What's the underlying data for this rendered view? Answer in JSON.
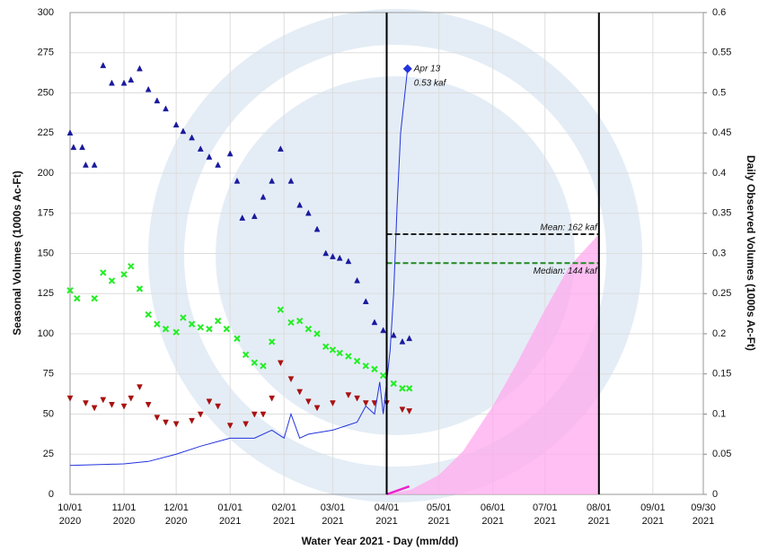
{
  "chart_data": {
    "type": "scatter",
    "xlabel": "Water Year 2021 - Day (mm/dd)",
    "ylabel": "Seasonal Volumes (1000s Ac-Ft)",
    "y2label": "Daily Observed Volumes (1000s Ac-Ft)",
    "xlim": [
      "2020-10-01",
      "2021-09-30"
    ],
    "xticks": [
      {
        "value": "2020-10-01",
        "label": [
          "10/01",
          "2020"
        ]
      },
      {
        "value": "2020-11-01",
        "label": [
          "11/01",
          "2020"
        ]
      },
      {
        "value": "2020-12-01",
        "label": [
          "12/01",
          "2020"
        ]
      },
      {
        "value": "2021-01-01",
        "label": [
          "01/01",
          "2021"
        ]
      },
      {
        "value": "2021-02-01",
        "label": [
          "02/01",
          "2021"
        ]
      },
      {
        "value": "2021-03-01",
        "label": [
          "03/01",
          "2021"
        ]
      },
      {
        "value": "2021-04-01",
        "label": [
          "04/01",
          "2021"
        ]
      },
      {
        "value": "2021-05-01",
        "label": [
          "05/01",
          "2021"
        ]
      },
      {
        "value": "2021-06-01",
        "label": [
          "06/01",
          "2021"
        ]
      },
      {
        "value": "2021-07-01",
        "label": [
          "07/01",
          "2021"
        ]
      },
      {
        "value": "2021-08-01",
        "label": [
          "08/01",
          "2021"
        ]
      },
      {
        "value": "2021-09-01",
        "label": [
          "09/01",
          "2021"
        ]
      },
      {
        "value": "2021-09-30",
        "label": [
          "09/30",
          "2021"
        ]
      }
    ],
    "ylim": [
      0,
      300
    ],
    "yticks": [
      0,
      25,
      50,
      75,
      100,
      125,
      150,
      175,
      200,
      225,
      250,
      275,
      300
    ],
    "y2lim": [
      0,
      0.6
    ],
    "y2ticks": [
      0,
      0.05,
      0.1,
      0.15,
      0.2,
      0.25,
      0.3,
      0.35,
      0.4,
      0.45,
      0.5,
      0.55,
      0.6
    ],
    "grid": true,
    "series": [
      {
        "marker": "triangle",
        "color": "#1a1a9e",
        "x": [
          "2020-10-01",
          "2020-10-03",
          "2020-10-08",
          "2020-10-10",
          "2020-10-15",
          "2020-10-20",
          "2020-10-25",
          "2020-11-01",
          "2020-11-05",
          "2020-11-10",
          "2020-11-15",
          "2020-11-20",
          "2020-11-25",
          "2020-12-01",
          "2020-12-05",
          "2020-12-10",
          "2020-12-15",
          "2020-12-20",
          "2020-12-25",
          "2021-01-01",
          "2021-01-05",
          "2021-01-08",
          "2021-01-15",
          "2021-01-20",
          "2021-01-25",
          "2021-01-30",
          "2021-02-05",
          "2021-02-10",
          "2021-02-15",
          "2021-02-20",
          "2021-02-25",
          "2021-03-01",
          "2021-03-05",
          "2021-03-10",
          "2021-03-15",
          "2021-03-20",
          "2021-03-25",
          "2021-03-30",
          "2021-04-05",
          "2021-04-10",
          "2021-04-14"
        ],
        "values": [
          225,
          216,
          216,
          205,
          205,
          267,
          256,
          256,
          258,
          265,
          252,
          245,
          240,
          230,
          226,
          222,
          215,
          210,
          205,
          212,
          195,
          172,
          173,
          185,
          195,
          215,
          195,
          180,
          175,
          165,
          150,
          148,
          147,
          145,
          133,
          120,
          107,
          102,
          99,
          95,
          97
        ]
      },
      {
        "marker": "x",
        "color": "#22ee22",
        "x": [
          "2020-10-01",
          "2020-10-05",
          "2020-10-15",
          "2020-10-20",
          "2020-10-25",
          "2020-11-01",
          "2020-11-05",
          "2020-11-10",
          "2020-11-15",
          "2020-11-20",
          "2020-11-25",
          "2020-12-01",
          "2020-12-05",
          "2020-12-10",
          "2020-12-15",
          "2020-12-20",
          "2020-12-25",
          "2020-12-30",
          "2021-01-05",
          "2021-01-10",
          "2021-01-15",
          "2021-01-20",
          "2021-01-25",
          "2021-01-30",
          "2021-02-05",
          "2021-02-10",
          "2021-02-15",
          "2021-02-20",
          "2021-02-25",
          "2021-03-01",
          "2021-03-05",
          "2021-03-10",
          "2021-03-15",
          "2021-03-20",
          "2021-03-25",
          "2021-03-30",
          "2021-04-05",
          "2021-04-10",
          "2021-04-14"
        ],
        "values": [
          127,
          122,
          122,
          138,
          133,
          137,
          142,
          128,
          112,
          106,
          103,
          101,
          110,
          106,
          104,
          103,
          108,
          103,
          97,
          87,
          82,
          80,
          95,
          115,
          107,
          108,
          103,
          100,
          92,
          90,
          88,
          86,
          83,
          80,
          78,
          74,
          69,
          66,
          66
        ]
      },
      {
        "marker": "triangle-down",
        "color": "#aa1111",
        "x": [
          "2020-10-01",
          "2020-10-10",
          "2020-10-15",
          "2020-10-20",
          "2020-10-25",
          "2020-11-01",
          "2020-11-05",
          "2020-11-10",
          "2020-11-15",
          "2020-11-20",
          "2020-11-25",
          "2020-12-01",
          "2020-12-10",
          "2020-12-15",
          "2020-12-20",
          "2020-12-25",
          "2021-01-01",
          "2021-01-10",
          "2021-01-15",
          "2021-01-20",
          "2021-01-25",
          "2021-01-30",
          "2021-02-05",
          "2021-02-10",
          "2021-02-15",
          "2021-02-20",
          "2021-03-01",
          "2021-03-10",
          "2021-03-15",
          "2021-03-20",
          "2021-03-25",
          "2021-04-01",
          "2021-04-10",
          "2021-04-14"
        ],
        "values": [
          60,
          57,
          54,
          59,
          56,
          55,
          60,
          67,
          56,
          48,
          45,
          44,
          46,
          50,
          58,
          55,
          43,
          44,
          50,
          50,
          60,
          82,
          72,
          64,
          58,
          54,
          57,
          62,
          60,
          57,
          57,
          57,
          53,
          52
        ]
      },
      {
        "marker": "area",
        "color": "#ffaaee",
        "x": [
          "2021-04-01",
          "2021-04-15",
          "2021-05-01",
          "2021-05-15",
          "2021-06-01",
          "2021-06-15",
          "2021-07-01",
          "2021-07-15",
          "2021-08-01"
        ],
        "values": [
          0,
          3,
          12,
          27,
          55,
          82,
          115,
          142,
          162
        ]
      },
      {
        "marker": "line",
        "color": "#ee22cc",
        "x": [
          "2021-04-01",
          "2021-04-14"
        ],
        "values": [
          0,
          5
        ]
      },
      {
        "marker": "line",
        "color": "#2233dd",
        "axis": "y2",
        "x": [
          "2020-10-01",
          "2020-11-01",
          "2020-11-15",
          "2020-12-01",
          "2020-12-15",
          "2021-01-01",
          "2021-01-15",
          "2021-01-25",
          "2021-02-01",
          "2021-02-05",
          "2021-02-10",
          "2021-02-15",
          "2021-03-01",
          "2021-03-15",
          "2021-03-20",
          "2021-03-25",
          "2021-03-28",
          "2021-03-30",
          "2021-04-01",
          "2021-04-03",
          "2021-04-05",
          "2021-04-07",
          "2021-04-09",
          "2021-04-11",
          "2021-04-13"
        ],
        "values": [
          0.036,
          0.038,
          0.041,
          0.05,
          0.06,
          0.07,
          0.07,
          0.08,
          0.07,
          0.1,
          0.07,
          0.075,
          0.08,
          0.09,
          0.11,
          0.1,
          0.14,
          0.1,
          0.14,
          0.18,
          0.25,
          0.36,
          0.45,
          0.49,
          0.53
        ]
      }
    ],
    "point_label": {
      "x": "2021-04-13",
      "value": 0.53,
      "color": "#2233dd",
      "text": [
        "Apr 13",
        "0.53 kaf"
      ]
    },
    "vlines": [
      "2021-04-01",
      "2021-08-01"
    ],
    "reference_lines": [
      {
        "value": 162,
        "color": "#222222",
        "label": "Mean: 162 kaf",
        "from": "2021-04-01",
        "to": "2021-08-01"
      },
      {
        "value": 144,
        "color": "#228822",
        "label": "Median: 144 kaf",
        "from": "2021-04-01",
        "to": "2021-08-01"
      }
    ]
  }
}
